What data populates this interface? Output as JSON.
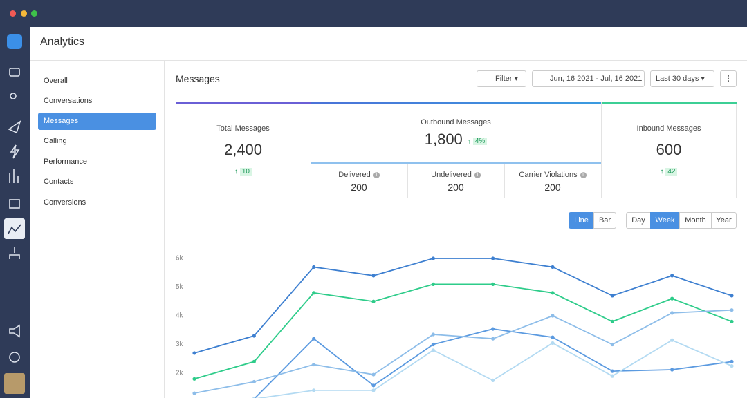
{
  "app": {
    "title": "Analytics"
  },
  "nav": [
    "Overall",
    "Conversations",
    "Messages",
    "Calling",
    "Performance",
    "Contacts",
    "Conversions"
  ],
  "header": {
    "title": "Messages",
    "filter": "Filter",
    "date_range": "Jun, 16 2021 - Jul, 16 2021",
    "period": "Last 30 days"
  },
  "stats": {
    "total": {
      "label": "Total Messages",
      "value": "2,400",
      "change": "10"
    },
    "outbound": {
      "label": "Outbound Messages",
      "value": "1,800",
      "change": "4%"
    },
    "inbound": {
      "label": "Inbound Messages",
      "value": "600",
      "change": "42"
    },
    "breakdown": [
      {
        "label": "Delivered",
        "value": "200"
      },
      {
        "label": "Undelivered",
        "value": "200"
      },
      {
        "label": "Carrier Violations",
        "value": "200"
      }
    ]
  },
  "chart_toggle": [
    "Line",
    "Bar"
  ],
  "range_toggle": [
    "Day",
    "Week",
    "Month",
    "Year"
  ],
  "chart_data": {
    "type": "line",
    "categories": [
      null,
      null,
      null,
      null,
      null,
      null,
      null,
      null,
      null,
      null
    ],
    "series": [
      {
        "color": "#3d7fd0",
        "values": [
          2700,
          3300,
          5700,
          5400,
          6000,
          6000,
          5700,
          4700,
          5400,
          4700
        ]
      },
      {
        "color": "#2ecc8a",
        "values": [
          1800,
          2400,
          4800,
          4500,
          5100,
          5100,
          4800,
          3800,
          4600,
          3800
        ]
      },
      {
        "color": "#5b9ae0",
        "values": [
          null,
          1100,
          3200,
          1570,
          3000,
          3540,
          3250,
          2070,
          2120,
          2400
        ]
      },
      {
        "color": "#8dbde9",
        "values": [
          1300,
          1700,
          2300,
          1950,
          3350,
          3200,
          4000,
          3000,
          4100,
          4200
        ]
      },
      {
        "color": "#b3daf2",
        "values": [
          null,
          1100,
          1400,
          1400,
          2800,
          1750,
          3050,
          1900,
          3150,
          2250
        ]
      }
    ],
    "ylim": [
      1000,
      6500
    ],
    "yticks": [
      {
        "value": 2000,
        "label": "2k"
      },
      {
        "value": 3000,
        "label": "3k"
      },
      {
        "value": 4000,
        "label": "4k"
      },
      {
        "value": 5000,
        "label": "5k"
      },
      {
        "value": 6000,
        "label": "6k"
      }
    ],
    "grid": false
  }
}
